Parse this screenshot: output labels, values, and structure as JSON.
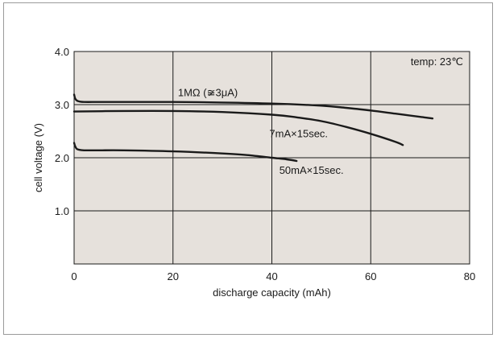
{
  "chart_data": {
    "type": "line",
    "title": "",
    "xlabel": "discharge capacity (mAh)",
    "ylabel": "cell voltage (V)",
    "xlim": [
      0,
      80
    ],
    "ylim": [
      0,
      4.0
    ],
    "x_ticks": [
      0,
      20,
      40,
      60,
      80
    ],
    "x_tick_labels": [
      "0",
      "20",
      "40",
      "60",
      "80"
    ],
    "y_ticks": [
      1.0,
      2.0,
      3.0,
      4.0
    ],
    "y_tick_labels": [
      "1.0",
      "2.0",
      "3.0",
      "4.0"
    ],
    "grid": true,
    "plot_background": "#e6e1dc",
    "line_color": "#1a1a1a",
    "annotation": "temp: 23℃",
    "series": [
      {
        "name": "1MΩ (≆3μA)",
        "x": [
          0,
          0.2,
          0.5,
          1,
          2,
          5,
          10,
          20,
          30,
          40,
          50,
          55,
          60,
          65,
          70,
          72.5
        ],
        "y": [
          3.19,
          3.12,
          3.08,
          3.06,
          3.05,
          3.05,
          3.05,
          3.05,
          3.04,
          3.02,
          2.98,
          2.94,
          2.89,
          2.83,
          2.77,
          2.74
        ]
      },
      {
        "name": "7mA×15sec.",
        "x": [
          0,
          10,
          20,
          30,
          40,
          45,
          50,
          55,
          60,
          65,
          66.5
        ],
        "y": [
          2.87,
          2.88,
          2.88,
          2.86,
          2.81,
          2.76,
          2.69,
          2.58,
          2.45,
          2.3,
          2.24
        ]
      },
      {
        "name": "50mA×15sec.",
        "x": [
          0,
          0.2,
          0.5,
          1,
          2,
          5,
          10,
          20,
          30,
          35,
          40,
          43,
          45
        ],
        "y": [
          2.28,
          2.22,
          2.17,
          2.15,
          2.14,
          2.14,
          2.14,
          2.12,
          2.08,
          2.05,
          2.0,
          1.97,
          1.94
        ]
      }
    ],
    "series_labels": [
      {
        "text": "1MΩ (≆3μA)",
        "x": 21,
        "y": 3.16
      },
      {
        "text": "7mA×15sec.",
        "x": 39.5,
        "y": 2.39
      },
      {
        "text": "50mA×15sec.",
        "x": 41.5,
        "y": 1.7
      }
    ]
  }
}
